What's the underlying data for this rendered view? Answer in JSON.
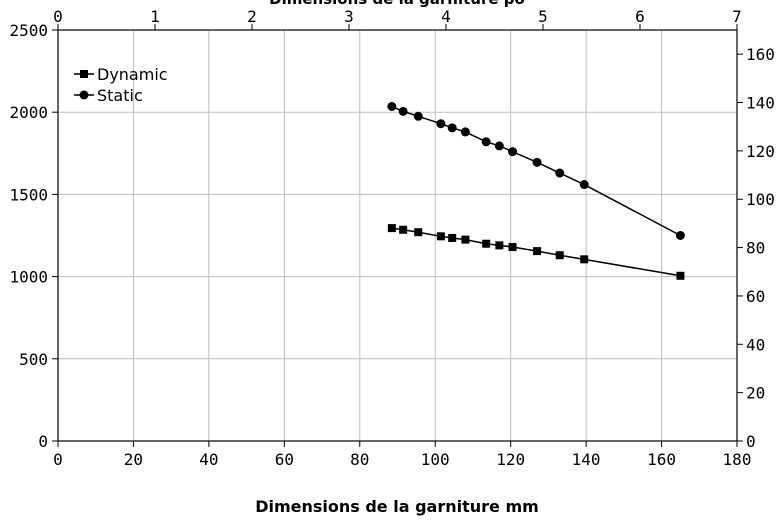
{
  "chart_data": {
    "type": "line",
    "title": "",
    "top_axis_title": "Dimensions de la garniture po",
    "xlabel": "Dimensions de la garniture mm",
    "x_bottom": {
      "range": [
        0,
        180
      ],
      "ticks": [
        0,
        20,
        40,
        60,
        80,
        100,
        120,
        140,
        160,
        180
      ]
    },
    "x_top": {
      "range": [
        0,
        7
      ],
      "ticks": [
        0,
        1,
        2,
        3,
        4,
        5,
        6,
        7
      ]
    },
    "y_left": {
      "range": [
        0,
        2500
      ],
      "ticks": [
        0,
        500,
        1000,
        1500,
        2000,
        2500
      ]
    },
    "y_right": {
      "range": [
        0,
        170
      ],
      "ticks": [
        0,
        20,
        40,
        60,
        80,
        100,
        120,
        140,
        160
      ]
    },
    "grid": true,
    "legend_position": "top-left",
    "series": [
      {
        "name": "Dynamic",
        "marker": "square",
        "color": "#000000",
        "x": [
          88.5,
          91.5,
          95.5,
          101.5,
          104.5,
          108,
          113.5,
          117,
          120.5,
          127,
          133,
          139.5,
          165
        ],
        "y": [
          1295,
          1285,
          1270,
          1245,
          1235,
          1225,
          1200,
          1190,
          1180,
          1155,
          1130,
          1105,
          1005
        ]
      },
      {
        "name": "Static",
        "marker": "circle",
        "color": "#000000",
        "x": [
          88.5,
          91.5,
          95.5,
          101.5,
          104.5,
          108,
          113.5,
          117,
          120.5,
          127,
          133,
          139.5,
          165
        ],
        "y": [
          2035,
          2005,
          1975,
          1930,
          1905,
          1880,
          1820,
          1795,
          1760,
          1695,
          1630,
          1560,
          1250
        ]
      }
    ]
  }
}
